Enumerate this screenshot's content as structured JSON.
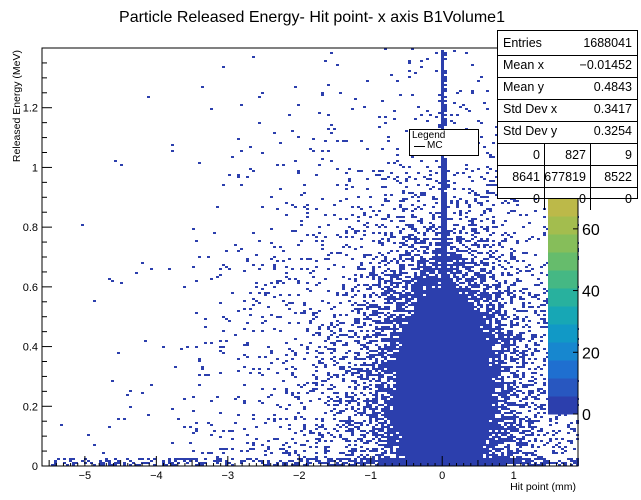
{
  "chart_data": {
    "type": "heatmap",
    "title": "Particle Released Energy- Hit point- x axis B1Volume1",
    "xlabel": "Hit point (mm)",
    "ylabel": "Released Energy (MeV)",
    "xlim": [
      -5.6,
      1.9
    ],
    "ylim": [
      0,
      1.4
    ],
    "xticks": [
      -5,
      -4,
      -3,
      -2,
      -1,
      0,
      1
    ],
    "yticks": [
      0,
      0.2,
      0.4,
      0.6,
      0.8,
      1,
      1.2
    ],
    "colorbar": {
      "ticks": [
        0,
        20,
        40,
        60
      ],
      "range": [
        0,
        70
      ]
    },
    "legend": {
      "title": "Legend",
      "entries": [
        "MC"
      ]
    },
    "stats": {
      "rows": [
        {
          "key": "Entries",
          "value": "1688041"
        },
        {
          "key": "Mean x",
          "value": "−0.01452"
        },
        {
          "key": "Mean y",
          "value": "0.4843"
        },
        {
          "key": "Std Dev x",
          "value": "0.3417"
        },
        {
          "key": "Std Dev y",
          "value": "0.3254"
        }
      ],
      "grid": [
        [
          "0",
          "827",
          "9"
        ],
        [
          "8641",
          "677819",
          "8522"
        ],
        [
          "0",
          "0",
          "0"
        ]
      ]
    },
    "colors": {
      "main": "#2c3fad",
      "text": "#000000"
    }
  }
}
